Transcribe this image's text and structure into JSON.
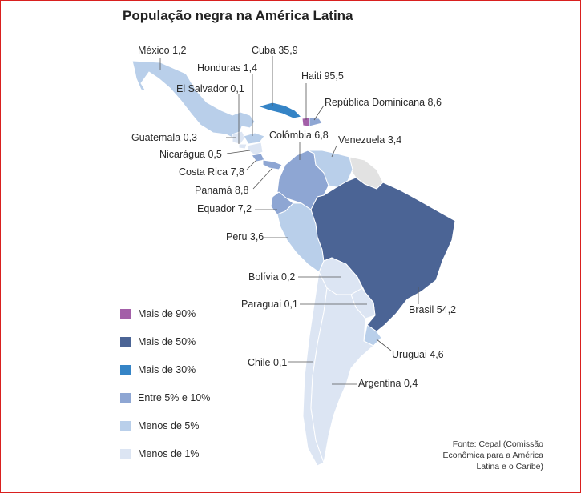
{
  "title": "População negra na América Latina",
  "colors": {
    "mais_90": "#a35fa8",
    "mais_50": "#4b6495",
    "mais_30": "#3584c6",
    "entre_5_10": "#8ea6d3",
    "menos_5": "#b9cfea",
    "menos_1": "#dce5f3",
    "no_data": "#e2e2e2",
    "border": "#ffffff",
    "leader": "#555555"
  },
  "countries": [
    {
      "label": "México 1,2",
      "value": 1.2,
      "class": "menos_5"
    },
    {
      "label": "Honduras 1,4",
      "value": 1.4,
      "class": "menos_5"
    },
    {
      "label": "El Salvador 0,1",
      "value": 0.1,
      "class": "menos_1"
    },
    {
      "label": "Guatemala 0,3",
      "value": 0.3,
      "class": "menos_1"
    },
    {
      "label": "Nicarágua 0,5",
      "value": 0.5,
      "class": "menos_1"
    },
    {
      "label": "Costa Rica 7,8",
      "value": 7.8,
      "class": "entre_5_10"
    },
    {
      "label": "Panamá 8,8",
      "value": 8.8,
      "class": "entre_5_10"
    },
    {
      "label": "Cuba 35,9",
      "value": 35.9,
      "class": "mais_30"
    },
    {
      "label": "Haiti 95,5",
      "value": 95.5,
      "class": "mais_90"
    },
    {
      "label": "República Dominicana 8,6",
      "value": 8.6,
      "class": "entre_5_10"
    },
    {
      "label": "Colômbia 6,8",
      "value": 6.8,
      "class": "entre_5_10"
    },
    {
      "label": "Venezuela 3,4",
      "value": 3.4,
      "class": "menos_5"
    },
    {
      "label": "Equador 7,2",
      "value": 7.2,
      "class": "entre_5_10"
    },
    {
      "label": "Peru 3,6",
      "value": 3.6,
      "class": "menos_5"
    },
    {
      "label": "Bolívia 0,2",
      "value": 0.2,
      "class": "menos_1"
    },
    {
      "label": "Paraguai 0,1",
      "value": 0.1,
      "class": "menos_1"
    },
    {
      "label": "Brasil 54,2",
      "value": 54.2,
      "class": "mais_50"
    },
    {
      "label": "Uruguai 4,6",
      "value": 4.6,
      "class": "menos_5"
    },
    {
      "label": "Chile 0,1",
      "value": 0.1,
      "class": "menos_1"
    },
    {
      "label": "Argentina 0,4",
      "value": 0.4,
      "class": "menos_1"
    }
  ],
  "legend": [
    {
      "label": "Mais de 90%",
      "color": "#a35fa8"
    },
    {
      "label": "Mais de 50%",
      "color": "#4b6495"
    },
    {
      "label": "Mais de 30%",
      "color": "#3584c6"
    },
    {
      "label": "Entre 5% e 10%",
      "color": "#8ea6d3"
    },
    {
      "label": "Menos de 5%",
      "color": "#b9cfea"
    },
    {
      "label": "Menos de 1%",
      "color": "#dce5f3"
    }
  ],
  "source": "Fonte: Cepal (Comissão Econômica para a América Latina e o Caribe)"
}
